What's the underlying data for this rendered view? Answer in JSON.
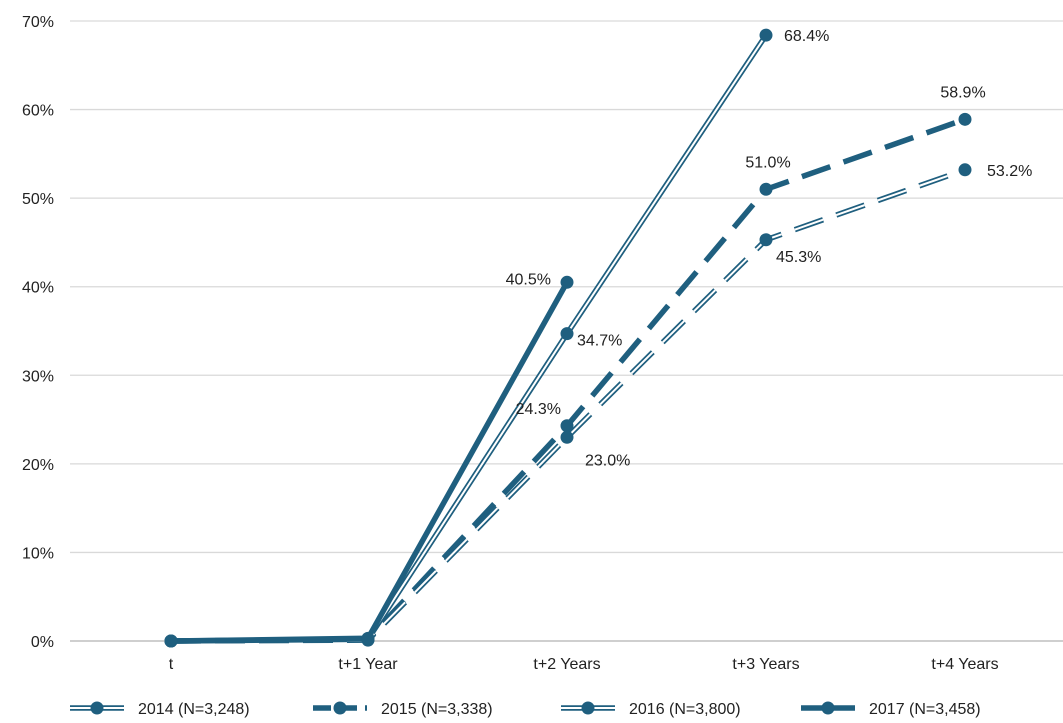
{
  "chart_data": {
    "type": "line",
    "title": "",
    "xlabel": "",
    "ylabel": "",
    "categories": [
      "t",
      "t+1 Year",
      "t+2 Years",
      "t+3 Years",
      "t+4 Years"
    ],
    "ylim": [
      0,
      70
    ],
    "y_ticks": [
      "0%",
      "10%",
      "20%",
      "30%",
      "40%",
      "50%",
      "60%",
      "70%"
    ],
    "y_tick_values": [
      0,
      10,
      20,
      30,
      40,
      50,
      60,
      70
    ],
    "grid": true,
    "legend_position": "bottom",
    "series": [
      {
        "name": "2014 (N=3,248)",
        "style": "double-solid",
        "values": [
          0,
          0.2,
          34.7,
          68.4,
          null
        ],
        "labels": [
          null,
          null,
          "34.7%",
          "68.4%",
          null
        ]
      },
      {
        "name": "2015 (N=3,338)",
        "style": "dashed-thick",
        "values": [
          0,
          0.2,
          24.3,
          51.0,
          58.9
        ],
        "labels": [
          null,
          null,
          "24.3%",
          "51.0%",
          "58.9%"
        ]
      },
      {
        "name": "2016 (N=3,800)",
        "style": "double-dashed",
        "values": [
          0,
          0.1,
          23.0,
          45.3,
          53.2
        ],
        "labels": [
          null,
          null,
          "23.0%",
          "45.3%",
          "53.2%"
        ]
      },
      {
        "name": "2017 (N=3,458)",
        "style": "solid-thick",
        "values": [
          0,
          0.3,
          40.5,
          null,
          null
        ],
        "labels": [
          null,
          null,
          "40.5%",
          null,
          null
        ]
      }
    ],
    "colors": {
      "series": "#1f5f7f",
      "grid": "#d9d9d9",
      "text": "#222222"
    }
  }
}
